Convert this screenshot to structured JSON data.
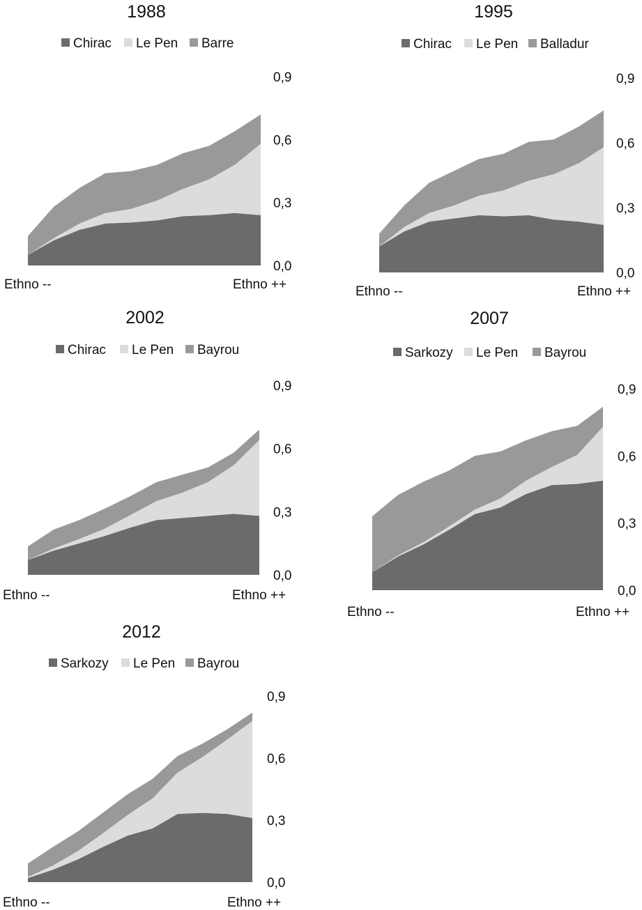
{
  "chart_data": [
    {
      "type": "area",
      "stacked": true,
      "title": "1988",
      "x_start_label": "Ethno --",
      "x_end_label": "Ethno ++",
      "ylim": [
        0,
        0.9
      ],
      "yticks": [
        "0,0",
        "0,3",
        "0,6",
        "0,9"
      ],
      "grid": false,
      "legend": "top",
      "colors": [
        "#6b6b6b",
        "#dcdcdc",
        "#999999"
      ],
      "series": [
        {
          "name": "Chirac",
          "values": [
            0.05,
            0.12,
            0.17,
            0.2,
            0.205,
            0.215,
            0.235,
            0.24,
            0.25,
            0.24
          ]
        },
        {
          "name": "Le Pen",
          "values": [
            0.0,
            0.01,
            0.03,
            0.05,
            0.065,
            0.095,
            0.13,
            0.17,
            0.23,
            0.34
          ]
        },
        {
          "name": "Barre",
          "values": [
            0.09,
            0.15,
            0.17,
            0.19,
            0.18,
            0.17,
            0.17,
            0.16,
            0.16,
            0.14
          ]
        }
      ]
    },
    {
      "type": "area",
      "stacked": true,
      "title": "1995",
      "x_start_label": "Ethno --",
      "x_end_label": "Ethno ++",
      "ylim": [
        0,
        0.9
      ],
      "yticks": [
        "0,0",
        "0,3",
        "0,6",
        "0,9"
      ],
      "grid": false,
      "legend": "top",
      "colors": [
        "#6b6b6b",
        "#dcdcdc",
        "#999999"
      ],
      "series": [
        {
          "name": "Chirac",
          "values": [
            0.12,
            0.19,
            0.235,
            0.25,
            0.265,
            0.26,
            0.265,
            0.245,
            0.235,
            0.22
          ]
        },
        {
          "name": "Le Pen",
          "values": [
            0.0,
            0.02,
            0.04,
            0.06,
            0.09,
            0.12,
            0.16,
            0.21,
            0.27,
            0.36
          ]
        },
        {
          "name": "Balladur",
          "values": [
            0.06,
            0.1,
            0.14,
            0.16,
            0.17,
            0.17,
            0.18,
            0.16,
            0.17,
            0.17
          ]
        }
      ]
    },
    {
      "type": "area",
      "stacked": true,
      "title": "2002",
      "x_start_label": "Ethno --",
      "x_end_label": "Ethno ++",
      "ylim": [
        0,
        0.9
      ],
      "yticks": [
        "0,0",
        "0,3",
        "0,6",
        "0,9"
      ],
      "grid": false,
      "legend": "top",
      "colors": [
        "#6b6b6b",
        "#dcdcdc",
        "#999999"
      ],
      "series": [
        {
          "name": "Chirac",
          "values": [
            0.07,
            0.115,
            0.15,
            0.185,
            0.225,
            0.26,
            0.27,
            0.28,
            0.29,
            0.28
          ]
        },
        {
          "name": "Le Pen",
          "values": [
            0.0,
            0.01,
            0.02,
            0.035,
            0.06,
            0.09,
            0.12,
            0.16,
            0.23,
            0.36
          ]
        },
        {
          "name": "Bayrou",
          "values": [
            0.065,
            0.09,
            0.09,
            0.095,
            0.09,
            0.09,
            0.085,
            0.07,
            0.06,
            0.05
          ]
        }
      ]
    },
    {
      "type": "area",
      "stacked": true,
      "title": "2007",
      "x_start_label": "Ethno --",
      "x_end_label": "Ethno ++",
      "ylim": [
        0,
        0.9
      ],
      "yticks": [
        "0,0",
        "0,3",
        "0,6",
        "0,9"
      ],
      "grid": false,
      "legend": "top",
      "colors": [
        "#6b6b6b",
        "#dcdcdc",
        "#999999"
      ],
      "series": [
        {
          "name": "Sarkozy",
          "values": [
            0.08,
            0.15,
            0.205,
            0.27,
            0.34,
            0.37,
            0.43,
            0.47,
            0.475,
            0.49
          ]
        },
        {
          "name": "Le Pen",
          "values": [
            0.0,
            0.005,
            0.01,
            0.015,
            0.02,
            0.04,
            0.06,
            0.08,
            0.13,
            0.24
          ]
        },
        {
          "name": "Bayrou",
          "values": [
            0.25,
            0.27,
            0.27,
            0.25,
            0.24,
            0.21,
            0.18,
            0.16,
            0.13,
            0.09
          ]
        }
      ]
    },
    {
      "type": "area",
      "stacked": true,
      "title": "2012",
      "x_start_label": "Ethno --",
      "x_end_label": "Ethno ++",
      "ylim": [
        0,
        0.9
      ],
      "yticks": [
        "0,0",
        "0,3",
        "0,6",
        "0,9"
      ],
      "grid": false,
      "legend": "top",
      "colors": [
        "#6b6b6b",
        "#dcdcdc",
        "#999999"
      ],
      "series": [
        {
          "name": "Sarkozy",
          "values": [
            0.02,
            0.06,
            0.11,
            0.17,
            0.225,
            0.26,
            0.33,
            0.335,
            0.33,
            0.31
          ]
        },
        {
          "name": "Le Pen",
          "values": [
            0.005,
            0.02,
            0.04,
            0.065,
            0.1,
            0.145,
            0.2,
            0.27,
            0.36,
            0.47
          ]
        },
        {
          "name": "Bayrou",
          "values": [
            0.065,
            0.09,
            0.095,
            0.1,
            0.1,
            0.095,
            0.08,
            0.065,
            0.05,
            0.04
          ]
        }
      ]
    }
  ]
}
